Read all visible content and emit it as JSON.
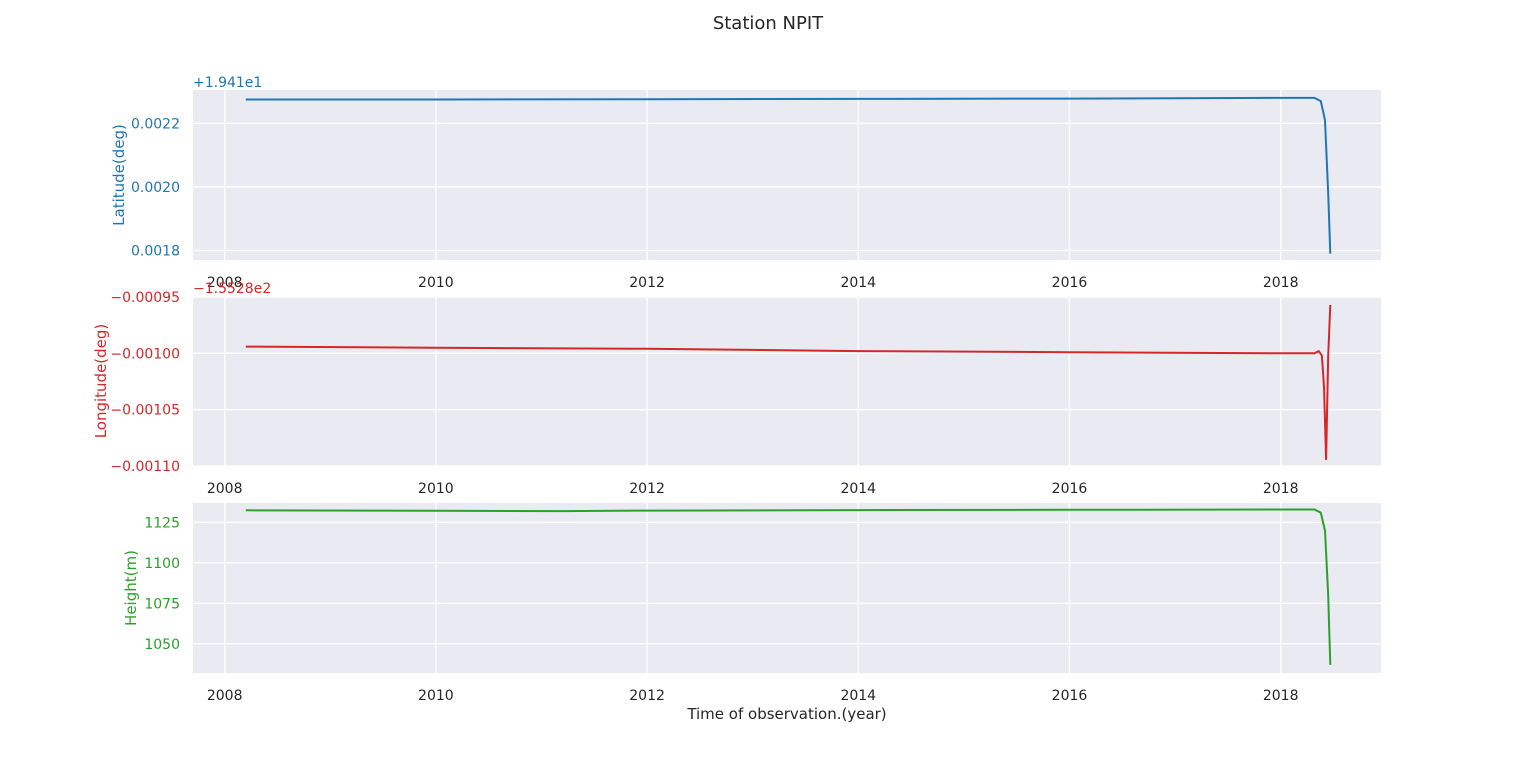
{
  "figure": {
    "title": "Station NPIT",
    "xlabel": "Time of observation.(year)"
  },
  "chart_data": [
    {
      "type": "line",
      "title": "Station NPIT",
      "ylabel": "Latitude(deg)",
      "offset_label": "+1.941e1",
      "offset_value": 19.41,
      "color": "#1f77b4",
      "xlim": [
        2007.7,
        2018.95
      ],
      "ylim": [
        0.00177,
        0.002305
      ],
      "x_ticks": [
        2008,
        2010,
        2012,
        2014,
        2016,
        2018
      ],
      "x_tick_labels": [
        "2008",
        "2010",
        "2012",
        "2014",
        "2016",
        "2018"
      ],
      "y_ticks": [
        0.0018,
        0.002,
        0.0022
      ],
      "y_tick_labels": [
        "0.0018",
        "0.0020",
        "0.0022"
      ],
      "grid": true,
      "x": [
        2008.2,
        2010,
        2012,
        2014,
        2016,
        2018,
        2018.32,
        2018.38,
        2018.42,
        2018.45,
        2018.47
      ],
      "y": [
        0.002275,
        0.002275,
        0.002276,
        0.002277,
        0.002278,
        0.00228,
        0.00228,
        0.00227,
        0.00221,
        0.00198,
        0.00179
      ]
    },
    {
      "type": "line",
      "ylabel": "Longitude(deg)",
      "offset_label": "−1.5528e2",
      "offset_value": -155.28,
      "color": "#d62728",
      "xlim": [
        2007.7,
        2018.95
      ],
      "ylim": [
        -0.0011,
        -0.00095
      ],
      "x_ticks": [
        2008,
        2010,
        2012,
        2014,
        2016,
        2018
      ],
      "x_tick_labels": [
        "2008",
        "2010",
        "2012",
        "2014",
        "2016",
        "2018"
      ],
      "y_ticks": [
        -0.00095,
        -0.001,
        -0.00105,
        -0.0011
      ],
      "y_tick_labels": [
        "−0.00095",
        "−0.00100",
        "−0.00105",
        "−0.00110"
      ],
      "grid": true,
      "x": [
        2008.2,
        2010,
        2012,
        2014,
        2016,
        2018,
        2018.32,
        2018.36,
        2018.39,
        2018.41,
        2018.43,
        2018.45,
        2018.47
      ],
      "y": [
        -0.000994,
        -0.000995,
        -0.000996,
        -0.000998,
        -0.000999,
        -0.001,
        -0.001,
        -0.000998,
        -0.001002,
        -0.00103,
        -0.001094,
        -0.001002,
        -0.000957
      ]
    },
    {
      "type": "line",
      "ylabel": "Height(m)",
      "xlabel": "Time of observation.(year)",
      "color": "#2ca02c",
      "xlim": [
        2007.7,
        2018.95
      ],
      "ylim": [
        1032,
        1137
      ],
      "x_ticks": [
        2008,
        2010,
        2012,
        2014,
        2016,
        2018
      ],
      "x_tick_labels": [
        "2008",
        "2010",
        "2012",
        "2014",
        "2016",
        "2018"
      ],
      "y_ticks": [
        1050,
        1075,
        1100,
        1125
      ],
      "y_tick_labels": [
        "1050",
        "1075",
        "1100",
        "1125"
      ],
      "grid": true,
      "x": [
        2008.2,
        2010,
        2011.2,
        2012,
        2014,
        2016,
        2018,
        2018.32,
        2018.38,
        2018.42,
        2018.45,
        2018.47
      ],
      "y": [
        1132.5,
        1132.2,
        1132,
        1132.3,
        1132.6,
        1132.8,
        1133,
        1133,
        1131,
        1120,
        1080,
        1037
      ]
    }
  ]
}
